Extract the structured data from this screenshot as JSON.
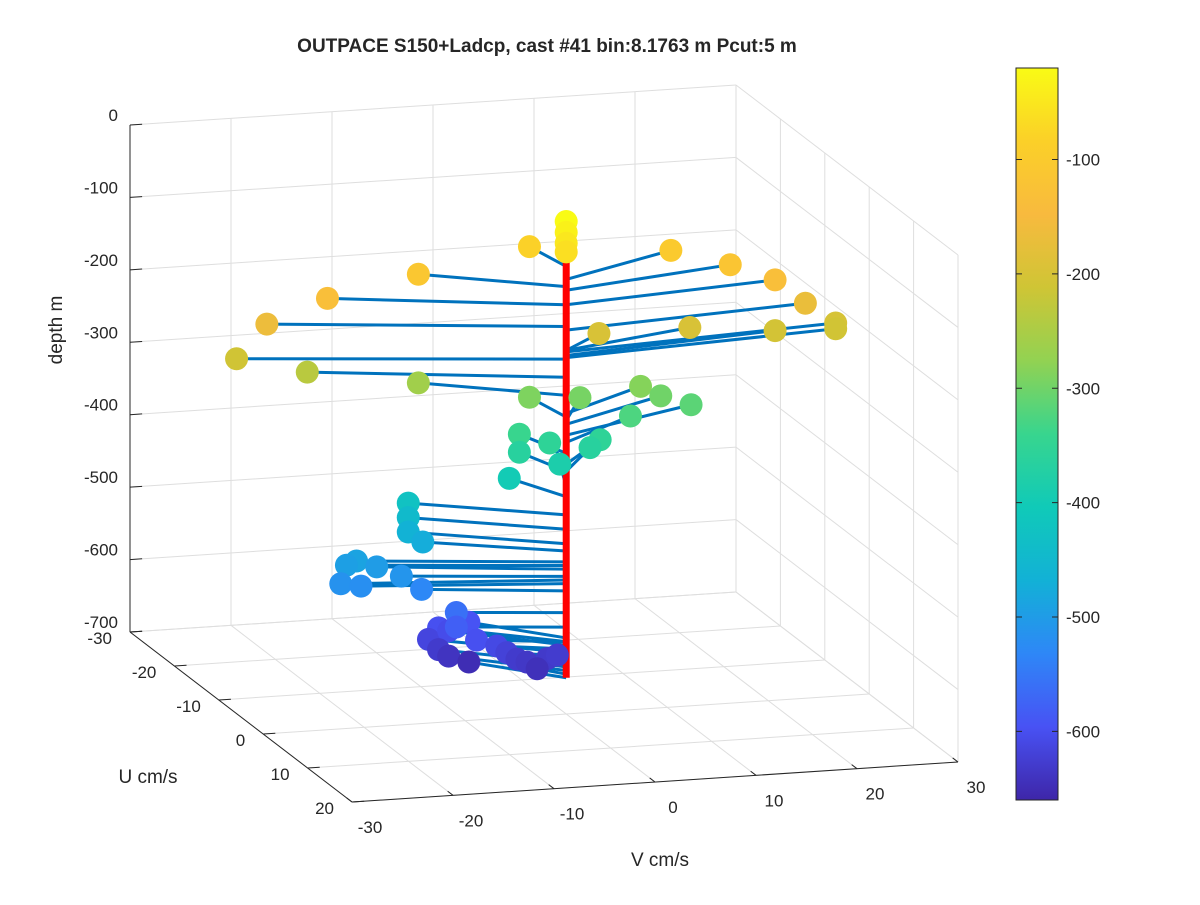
{
  "chart_data": {
    "type": "scatter",
    "projection": "3d",
    "title": "OUTPACE S150+Ladcp, cast #41 bin:8.1763 m  Pcut:5 m",
    "xlabel": "V cm/s",
    "ylabel": "U cm/s",
    "zlabel": "depth m",
    "x_axis": {
      "lim": [
        -30,
        30
      ],
      "ticks": [
        "-30",
        "-20",
        "-10",
        "0",
        "10",
        "20",
        "30"
      ]
    },
    "y_axis": {
      "lim": [
        -30,
        20
      ],
      "ticks": [
        "-30",
        "-20",
        "-10",
        "0",
        "10",
        "20"
      ]
    },
    "z_axis": {
      "lim": [
        -700,
        0
      ],
      "ticks": [
        "0",
        "-100",
        "-200",
        "-300",
        "-400",
        "-500",
        "-600",
        "-700"
      ]
    },
    "colorbar": {
      "lim": [
        -660,
        -20
      ],
      "ticks": [
        "-100",
        "-200",
        "-300",
        "-400",
        "-500",
        "-600"
      ],
      "colormap": "parula"
    },
    "grid": true,
    "vertical_line_color": "#ff0000",
    "stem_color": "#0072bd",
    "points": [
      {
        "v": -1,
        "u": -6,
        "depth": -82
      },
      {
        "v": 13,
        "u": -6,
        "depth": -100
      },
      {
        "v": 18,
        "u": -4,
        "depth": -115
      },
      {
        "v": 22,
        "u": -3,
        "depth": -135
      },
      {
        "v": -12,
        "u": -6,
        "depth": -110
      },
      {
        "v": -21,
        "u": -6,
        "depth": -135
      },
      {
        "v": -27,
        "u": -6,
        "depth": -165
      },
      {
        "v": 25,
        "u": -3,
        "depth": -170
      },
      {
        "v": -30,
        "u": -6,
        "depth": -210
      },
      {
        "v": 28,
        "u": -3,
        "depth": -200
      },
      {
        "v": 28,
        "u": -3,
        "depth": -208
      },
      {
        "v": 22,
        "u": -3,
        "depth": -205
      },
      {
        "v": 14,
        "u": -4,
        "depth": -198
      },
      {
        "v": 5,
        "u": -4,
        "depth": -198
      },
      {
        "v": -23,
        "u": -6,
        "depth": -235
      },
      {
        "v": -12,
        "u": -6,
        "depth": -260
      },
      {
        "v": 0,
        "u": 0,
        "depth": -20
      },
      {
        "v": 0,
        "u": 0,
        "depth": -35
      },
      {
        "v": 0,
        "u": 0,
        "depth": -50
      },
      {
        "v": 0,
        "u": 0,
        "depth": -62
      },
      {
        "v": -1,
        "u": -6,
        "depth": -290
      },
      {
        "v": 4,
        "u": -6,
        "depth": -295
      },
      {
        "v": 10,
        "u": -6,
        "depth": -285
      },
      {
        "v": 12,
        "u": -6,
        "depth": -300
      },
      {
        "v": 15,
        "u": -6,
        "depth": -315
      },
      {
        "v": 9,
        "u": -6,
        "depth": -325
      },
      {
        "v": -2,
        "u": -6,
        "depth": -340
      },
      {
        "v": 1,
        "u": -6,
        "depth": -355
      },
      {
        "v": 6,
        "u": -6,
        "depth": -355
      },
      {
        "v": 5,
        "u": -6,
        "depth": -365
      },
      {
        "v": -2,
        "u": -6,
        "depth": -365
      },
      {
        "v": 2,
        "u": -6,
        "depth": -385
      },
      {
        "v": -3,
        "u": -6,
        "depth": -400
      },
      {
        "v": -13,
        "u": -6,
        "depth": -425
      },
      {
        "v": -13,
        "u": -6,
        "depth": -445
      },
      {
        "v": -13,
        "u": -6,
        "depth": -465
      },
      {
        "v": -12,
        "u": -5,
        "depth": -475
      },
      {
        "v": -19,
        "u": -4,
        "depth": -490
      },
      {
        "v": -20,
        "u": -4,
        "depth": -495
      },
      {
        "v": -17,
        "u": -4,
        "depth": -500
      },
      {
        "v": -15,
        "u": -3,
        "depth": -510
      },
      {
        "v": -21,
        "u": -3,
        "depth": -515
      },
      {
        "v": -19,
        "u": -3,
        "depth": -520
      },
      {
        "v": -13,
        "u": -3,
        "depth": -530
      },
      {
        "v": -10,
        "u": -2,
        "depth": -560
      },
      {
        "v": -10,
        "u": -2,
        "depth": -580
      },
      {
        "v": -8,
        "u": -2,
        "depth": -600
      },
      {
        "v": -6,
        "u": -2,
        "depth": -610
      },
      {
        "v": -5,
        "u": -2,
        "depth": -620
      },
      {
        "v": -4,
        "u": -2,
        "depth": -630
      },
      {
        "v": -3,
        "u": -2,
        "depth": -635
      },
      {
        "v": -1,
        "u": -2,
        "depth": -632
      },
      {
        "v": 0,
        "u": -2,
        "depth": -628
      },
      {
        "v": -2,
        "u": -2,
        "depth": -645
      },
      {
        "v": -7,
        "u": -6,
        "depth": -595
      },
      {
        "v": -10,
        "u": -6,
        "depth": -600
      },
      {
        "v": -11,
        "u": -6,
        "depth": -615
      },
      {
        "v": -9,
        "u": -6,
        "depth": -605
      },
      {
        "v": -10,
        "u": -6,
        "depth": -630
      },
      {
        "v": -9,
        "u": -6,
        "depth": -640
      },
      {
        "v": -7,
        "u": -6,
        "depth": -650
      }
    ]
  }
}
